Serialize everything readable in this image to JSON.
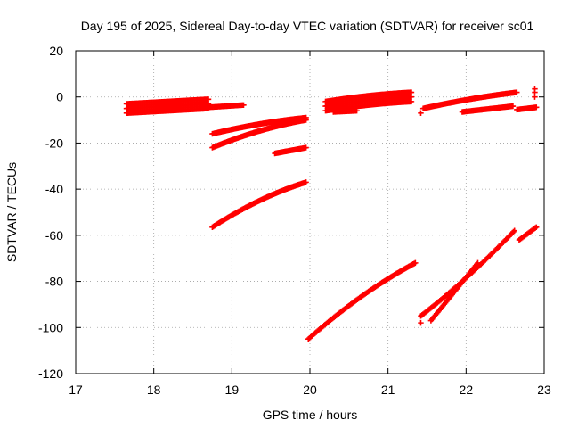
{
  "chart_data": {
    "type": "scatter",
    "title": "Day 195 of 2025, Sidereal Day-to-day VTEC variation (SDTVAR) for receiver sc01",
    "xlabel": "GPS time / hours",
    "ylabel": "SDTVAR / TECUs",
    "xlim": [
      17,
      23
    ],
    "ylim": [
      -120,
      20
    ],
    "xticks": [
      "17",
      "18",
      "19",
      "20",
      "21",
      "22",
      "23"
    ],
    "yticks": [
      "20",
      "0",
      "-20",
      "-40",
      "-60",
      "-80",
      "-100",
      "-120"
    ],
    "grid": true,
    "marker": "+",
    "color": "#ff0000",
    "series": [
      {
        "segments": [
          {
            "x0": 17.65,
            "x1": 18.7,
            "y0": -5.0,
            "y1": -3.0,
            "band": 4
          },
          {
            "x0": 18.7,
            "x1": 19.15,
            "y0": -4.5,
            "y1": -3.5,
            "band": 1.5
          },
          {
            "x0": 18.75,
            "x1": 19.95,
            "y0": -16.0,
            "y1": -9.0,
            "band": 1.5,
            "curve": 0.4
          },
          {
            "x0": 18.75,
            "x1": 19.95,
            "y0": -22.0,
            "y1": -10.0,
            "band": 1.5,
            "curve": 0.4
          },
          {
            "x0": 19.55,
            "x1": 19.95,
            "y0": -24.5,
            "y1": -22.0,
            "band": 1.0
          },
          {
            "x0": 18.75,
            "x1": 19.95,
            "y0": -56.5,
            "y1": -37.0,
            "band": 1.0,
            "curve": 0.35
          },
          {
            "x0": 19.98,
            "x1": 21.35,
            "y0": -105.0,
            "y1": -72.0,
            "band": 1.0,
            "curve": 0.25
          },
          {
            "x0": 20.2,
            "x1": 21.3,
            "y0": -4.0,
            "y1": 0.0,
            "band": 4,
            "curve": 0.5
          },
          {
            "x0": 20.3,
            "x1": 20.6,
            "y0": -6.5,
            "y1": -6.0,
            "band": 1
          },
          {
            "x0": 21.45,
            "x1": 22.65,
            "y0": -5.0,
            "y1": 2.0,
            "band": 1.5,
            "curve": 0.3
          },
          {
            "x0": 21.95,
            "x1": 22.6,
            "y0": -6.5,
            "y1": -4.0,
            "band": 1.0
          },
          {
            "x0": 22.65,
            "x1": 22.9,
            "y0": -5.5,
            "y1": -4.5,
            "band": 1.0
          },
          {
            "x0": 21.42,
            "x1": 22.62,
            "y0": -95.0,
            "y1": -58.0,
            "band": 1.0,
            "curve": -0.15
          },
          {
            "x0": 21.55,
            "x1": 22.15,
            "y0": -97.0,
            "y1": -72.0,
            "band": 1.0
          },
          {
            "x0": 22.68,
            "x1": 22.9,
            "y0": -62.0,
            "y1": -56.5,
            "band": 1.0
          }
        ]
      }
    ],
    "points": [
      {
        "x": 21.42,
        "y": -7
      },
      {
        "x": 21.42,
        "y": -98
      },
      {
        "x": 22.88,
        "y": 0
      },
      {
        "x": 22.88,
        "y": 2
      },
      {
        "x": 22.88,
        "y": 3.5
      }
    ]
  }
}
